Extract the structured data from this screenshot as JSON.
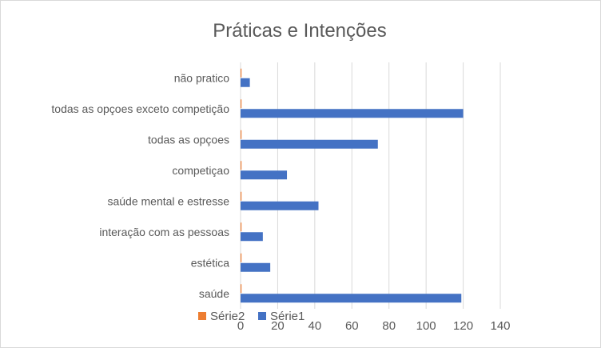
{
  "chart_data": {
    "type": "bar",
    "orientation": "horizontal",
    "title": "Práticas e Intenções",
    "categories": [
      "saúde",
      "estética",
      "interação com as pessoas",
      "saúde mental e estresse",
      "competiçao",
      "todas as opçoes",
      "todas as opçoes exceto competição",
      "não pratico"
    ],
    "series": [
      {
        "name": "Série1",
        "color": "#4472c4",
        "values": [
          119,
          16,
          12,
          42,
          25,
          74,
          120,
          5
        ]
      },
      {
        "name": "Série2",
        "color": "#ed7d31",
        "values": [
          0,
          0,
          0,
          0,
          0,
          0,
          0,
          0
        ]
      }
    ],
    "xlim": [
      0,
      140
    ],
    "x_ticks": [
      0,
      20,
      40,
      60,
      80,
      100,
      120,
      140
    ],
    "grid": "vertical",
    "legend": "bottom",
    "legend_order": [
      "Série2",
      "Série1"
    ]
  }
}
